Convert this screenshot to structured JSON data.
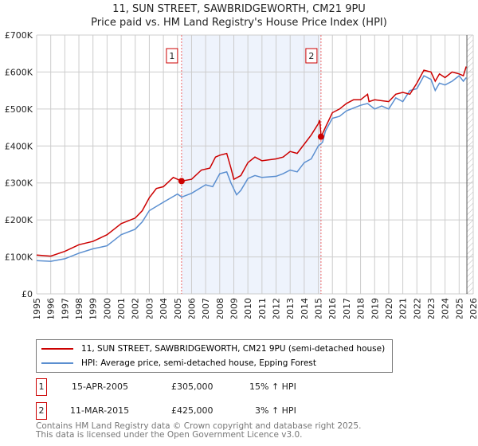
{
  "title": "11, SUN STREET, SAWBRIDGEWORTH, CM21 9PU",
  "subtitle": "Price paid vs. HM Land Registry's House Price Index (HPI)",
  "chart_data": {
    "type": "line",
    "xlim": [
      1995,
      2026
    ],
    "ylim": [
      0,
      700000
    ],
    "yticks": [
      {
        "v": 0,
        "label": "£0"
      },
      {
        "v": 100000,
        "label": "£100K"
      },
      {
        "v": 200000,
        "label": "£200K"
      },
      {
        "v": 300000,
        "label": "£300K"
      },
      {
        "v": 400000,
        "label": "£400K"
      },
      {
        "v": 500000,
        "label": "£500K"
      },
      {
        "v": 600000,
        "label": "£600K"
      },
      {
        "v": 700000,
        "label": "£700K"
      }
    ],
    "xticks": [
      "1995",
      "1996",
      "1997",
      "1998",
      "1999",
      "2000",
      "2001",
      "2002",
      "2003",
      "2004",
      "2005",
      "2006",
      "2007",
      "2008",
      "2009",
      "2010",
      "2011",
      "2012",
      "2013",
      "2014",
      "2015",
      "2016",
      "2017",
      "2018",
      "2019",
      "2020",
      "2021",
      "2022",
      "2023",
      "2024",
      "2025",
      "2026"
    ],
    "series": [
      {
        "name": "11, SUN STREET, SAWBRIDGEWORTH, CM21 9PU (semi-detached house)",
        "color": "#cc0000",
        "points": [
          [
            1995,
            105
          ],
          [
            1996,
            102
          ],
          [
            1997,
            115
          ],
          [
            1998,
            133
          ],
          [
            1999,
            142
          ],
          [
            2000,
            160
          ],
          [
            2000.5,
            175
          ],
          [
            2001,
            190
          ],
          [
            2002,
            205
          ],
          [
            2002.5,
            225
          ],
          [
            2003,
            260
          ],
          [
            2003.5,
            285
          ],
          [
            2004,
            290
          ],
          [
            2004.7,
            315
          ],
          [
            2005.3,
            305
          ],
          [
            2006,
            310
          ],
          [
            2006.7,
            335
          ],
          [
            2007.3,
            340
          ],
          [
            2007.7,
            370
          ],
          [
            2008,
            375
          ],
          [
            2008.5,
            380
          ],
          [
            2008.8,
            340
          ],
          [
            2009,
            310
          ],
          [
            2009.5,
            320
          ],
          [
            2010,
            355
          ],
          [
            2010.5,
            370
          ],
          [
            2011,
            360
          ],
          [
            2012,
            365
          ],
          [
            2012.5,
            370
          ],
          [
            2013,
            385
          ],
          [
            2013.5,
            380
          ],
          [
            2014,
            405
          ],
          [
            2014.5,
            430
          ],
          [
            2015,
            460
          ],
          [
            2015.1,
            470
          ],
          [
            2015.2,
            425
          ],
          [
            2015.5,
            450
          ],
          [
            2016,
            490
          ],
          [
            2016.5,
            500
          ],
          [
            2017,
            515
          ],
          [
            2017.5,
            525
          ],
          [
            2018,
            525
          ],
          [
            2018.5,
            540
          ],
          [
            2018.6,
            520
          ],
          [
            2019,
            525
          ],
          [
            2020,
            520
          ],
          [
            2020.5,
            540
          ],
          [
            2021,
            545
          ],
          [
            2021.5,
            540
          ],
          [
            2022,
            570
          ],
          [
            2022.5,
            605
          ],
          [
            2023,
            600
          ],
          [
            2023.3,
            575
          ],
          [
            2023.6,
            595
          ],
          [
            2024,
            585
          ],
          [
            2024.5,
            600
          ],
          [
            2025,
            595
          ],
          [
            2025.3,
            590
          ],
          [
            2025.5,
            615
          ]
        ]
      },
      {
        "name": "HPI: Average price, semi-detached house, Epping Forest",
        "color": "#5b8fd0",
        "points": [
          [
            1995,
            90
          ],
          [
            1996,
            88
          ],
          [
            1997,
            95
          ],
          [
            1998,
            110
          ],
          [
            1999,
            122
          ],
          [
            2000,
            130
          ],
          [
            2000.5,
            145
          ],
          [
            2001,
            160
          ],
          [
            2002,
            175
          ],
          [
            2002.5,
            195
          ],
          [
            2003,
            225
          ],
          [
            2004,
            248
          ],
          [
            2005,
            270
          ],
          [
            2005.3,
            262
          ],
          [
            2006,
            272
          ],
          [
            2007,
            295
          ],
          [
            2007.5,
            290
          ],
          [
            2008,
            325
          ],
          [
            2008.5,
            330
          ],
          [
            2008.8,
            300
          ],
          [
            2009.2,
            268
          ],
          [
            2009.5,
            280
          ],
          [
            2010,
            312
          ],
          [
            2010.5,
            320
          ],
          [
            2011,
            315
          ],
          [
            2012,
            318
          ],
          [
            2012.5,
            325
          ],
          [
            2013,
            335
          ],
          [
            2013.5,
            330
          ],
          [
            2014,
            355
          ],
          [
            2014.5,
            365
          ],
          [
            2015,
            400
          ],
          [
            2015.3,
            410
          ],
          [
            2015.5,
            440
          ],
          [
            2016,
            475
          ],
          [
            2016.5,
            480
          ],
          [
            2017,
            495
          ],
          [
            2018,
            510
          ],
          [
            2018.5,
            515
          ],
          [
            2019,
            500
          ],
          [
            2019.5,
            508
          ],
          [
            2020,
            500
          ],
          [
            2020.5,
            530
          ],
          [
            2021,
            520
          ],
          [
            2021.5,
            550
          ],
          [
            2022,
            555
          ],
          [
            2022.5,
            590
          ],
          [
            2023,
            580
          ],
          [
            2023.3,
            550
          ],
          [
            2023.6,
            570
          ],
          [
            2024,
            565
          ],
          [
            2024.5,
            575
          ],
          [
            2025,
            590
          ],
          [
            2025.3,
            575
          ],
          [
            2025.5,
            585
          ]
        ]
      }
    ],
    "y_units": "£ thousands in points",
    "sales": [
      {
        "id": "1",
        "x": 2005.29,
        "value": 305000
      },
      {
        "id": "2",
        "x": 2015.19,
        "value": 425000
      }
    ],
    "shaded_range": [
      2005.29,
      2015.19
    ],
    "forecast_start": 2025.55
  },
  "legend": [
    {
      "label": "11, SUN STREET, SAWBRIDGEWORTH, CM21 9PU (semi-detached house)",
      "color": "#cc0000"
    },
    {
      "label": "HPI: Average price, semi-detached house, Epping Forest",
      "color": "#5b8fd0"
    }
  ],
  "transactions": [
    {
      "id": "1",
      "date": "15-APR-2005",
      "price": "£305,000",
      "hpi": "15% ↑ HPI"
    },
    {
      "id": "2",
      "date": "11-MAR-2015",
      "price": "£425,000",
      "hpi": "3% ↑ HPI"
    }
  ],
  "footer": [
    "Contains HM Land Registry data © Crown copyright and database right 2025.",
    "This data is licensed under the Open Government Licence v3.0."
  ]
}
